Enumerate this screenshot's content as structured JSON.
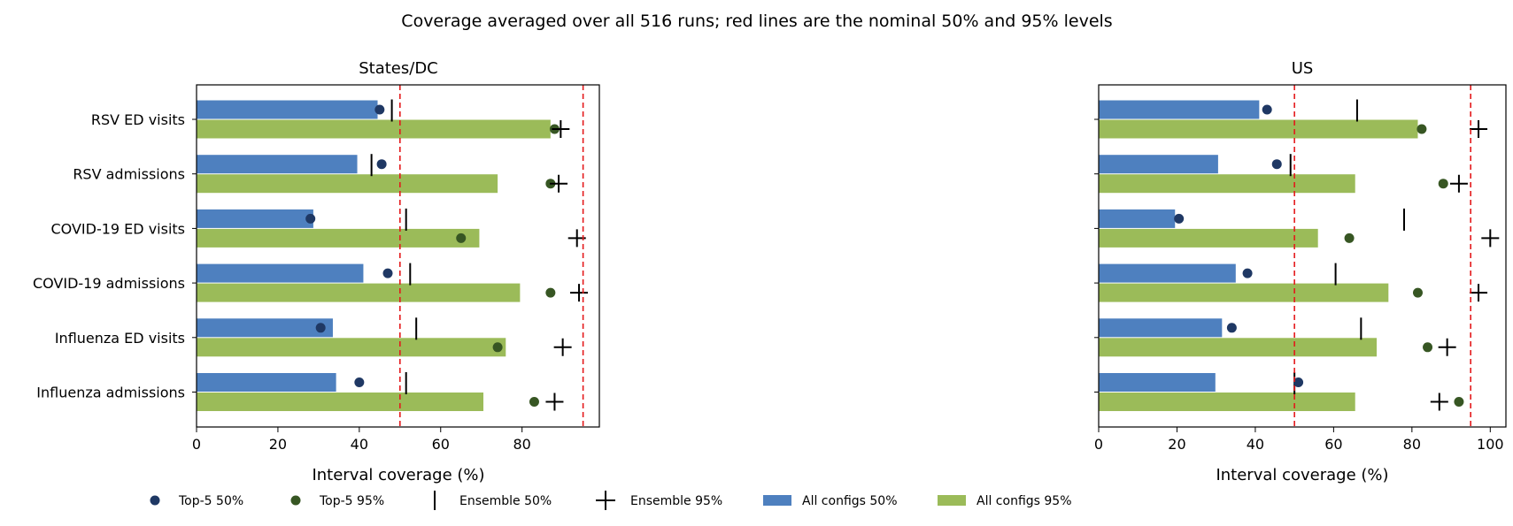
{
  "chart_data": {
    "type": "bar",
    "title": "Coverage averaged over all 516 runs; red lines are the nominal 50% and 95% levels",
    "categories": [
      "RSV ED visits",
      "RSV admissions",
      "COVID-19 ED visits",
      "COVID-19 admissions",
      "Influenza ED visits",
      "Influenza admissions"
    ],
    "reference_lines": [
      50,
      95
    ],
    "legend": [
      "Top-5 50%",
      "Top-5 95%",
      "Ensemble 50%",
      "Ensemble 95%",
      "All configs 50%",
      "All configs 95%"
    ],
    "legend_placement": "bottom",
    "colors": {
      "all_50": "#4e80bf",
      "all_95": "#9bbb59",
      "top5_50": "#1f3864",
      "top5_95": "#375623",
      "ensemble": "#000000",
      "reference": "#e41a1c"
    },
    "panels": [
      {
        "title": "States/DC",
        "xlabel": "Interval coverage (%)",
        "xlim": [
          0,
          99
        ],
        "xticks": [
          0,
          20,
          40,
          60,
          80
        ],
        "all_configs_50": [
          44.5,
          39.5,
          28.7,
          41.0,
          33.5,
          34.3
        ],
        "all_configs_95": [
          87.0,
          74.0,
          69.5,
          79.5,
          76.0,
          70.5
        ],
        "top5_50": [
          45.0,
          45.5,
          28.0,
          47.0,
          30.5,
          40.0
        ],
        "top5_95": [
          88.0,
          87.0,
          65.0,
          87.0,
          74.0,
          83.0
        ],
        "ensemble_50": [
          48.0,
          43.0,
          51.5,
          52.5,
          54.0,
          51.5
        ],
        "ensemble_95": [
          89.5,
          89.0,
          93.5,
          94.0,
          90.0,
          88.0
        ]
      },
      {
        "title": "US",
        "xlabel": "Interval coverage (%)",
        "xlim": [
          0,
          104
        ],
        "xticks": [
          0,
          20,
          40,
          60,
          80,
          100
        ],
        "all_configs_50": [
          41.0,
          30.5,
          19.5,
          35.0,
          31.5,
          29.8
        ],
        "all_configs_95": [
          81.5,
          65.5,
          56.0,
          74.0,
          71.0,
          65.5
        ],
        "top5_50": [
          43.0,
          45.5,
          20.5,
          38.0,
          34.0,
          51.0
        ],
        "top5_95": [
          82.5,
          88.0,
          64.0,
          81.5,
          84.0,
          92.0
        ],
        "ensemble_50": [
          66.0,
          49.0,
          78.0,
          60.5,
          67.0,
          50.0
        ],
        "ensemble_95": [
          97.0,
          92.0,
          100.0,
          97.0,
          89.0,
          87.0
        ]
      }
    ]
  }
}
